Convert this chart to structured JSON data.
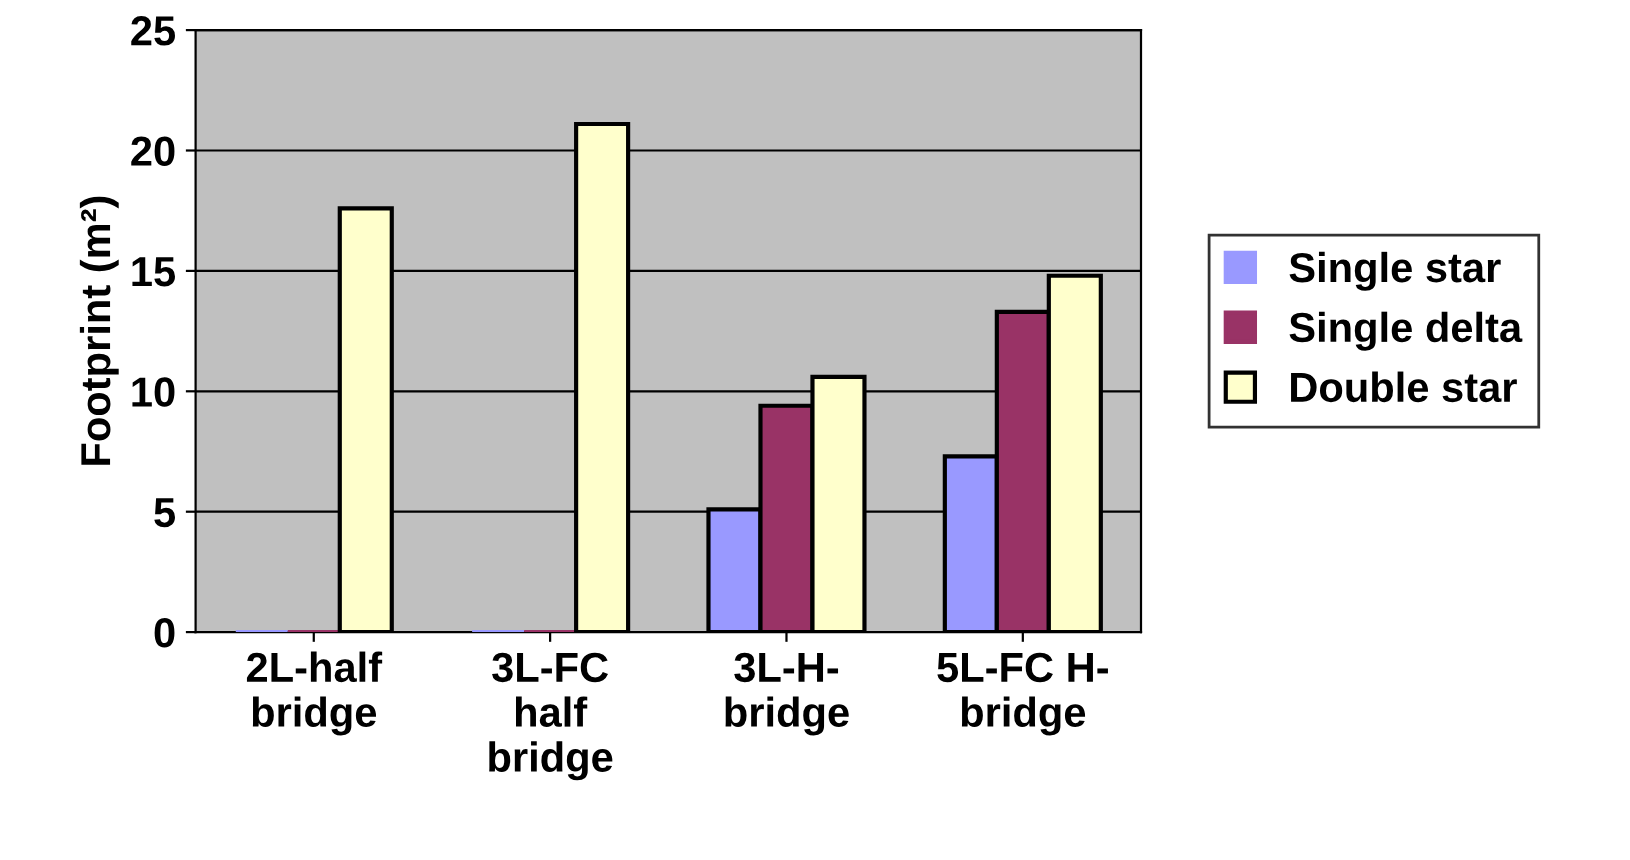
{
  "chart_data": {
    "type": "bar",
    "ylabel": "Footprint (m²)",
    "categories": [
      "2L-half\nbridge",
      "3L-FC\nhalf\nbridge",
      "3L-H-\nbridge",
      "5L-FC H-\nbridge"
    ],
    "series": [
      {
        "name": "Single star",
        "color": "#9999ff",
        "values": [
          0,
          0,
          5.1,
          7.3
        ]
      },
      {
        "name": "Single delta",
        "color": "#993366",
        "values": [
          0,
          0,
          9.4,
          13.3
        ]
      },
      {
        "name": "Double star",
        "color": "#ffffcc",
        "values": [
          17.6,
          21.1,
          10.6,
          14.8
        ]
      }
    ],
    "ylim": [
      0,
      25
    ],
    "yticks": [
      0,
      5,
      10,
      15,
      20,
      25
    ],
    "grid": "y",
    "legend": "right"
  }
}
